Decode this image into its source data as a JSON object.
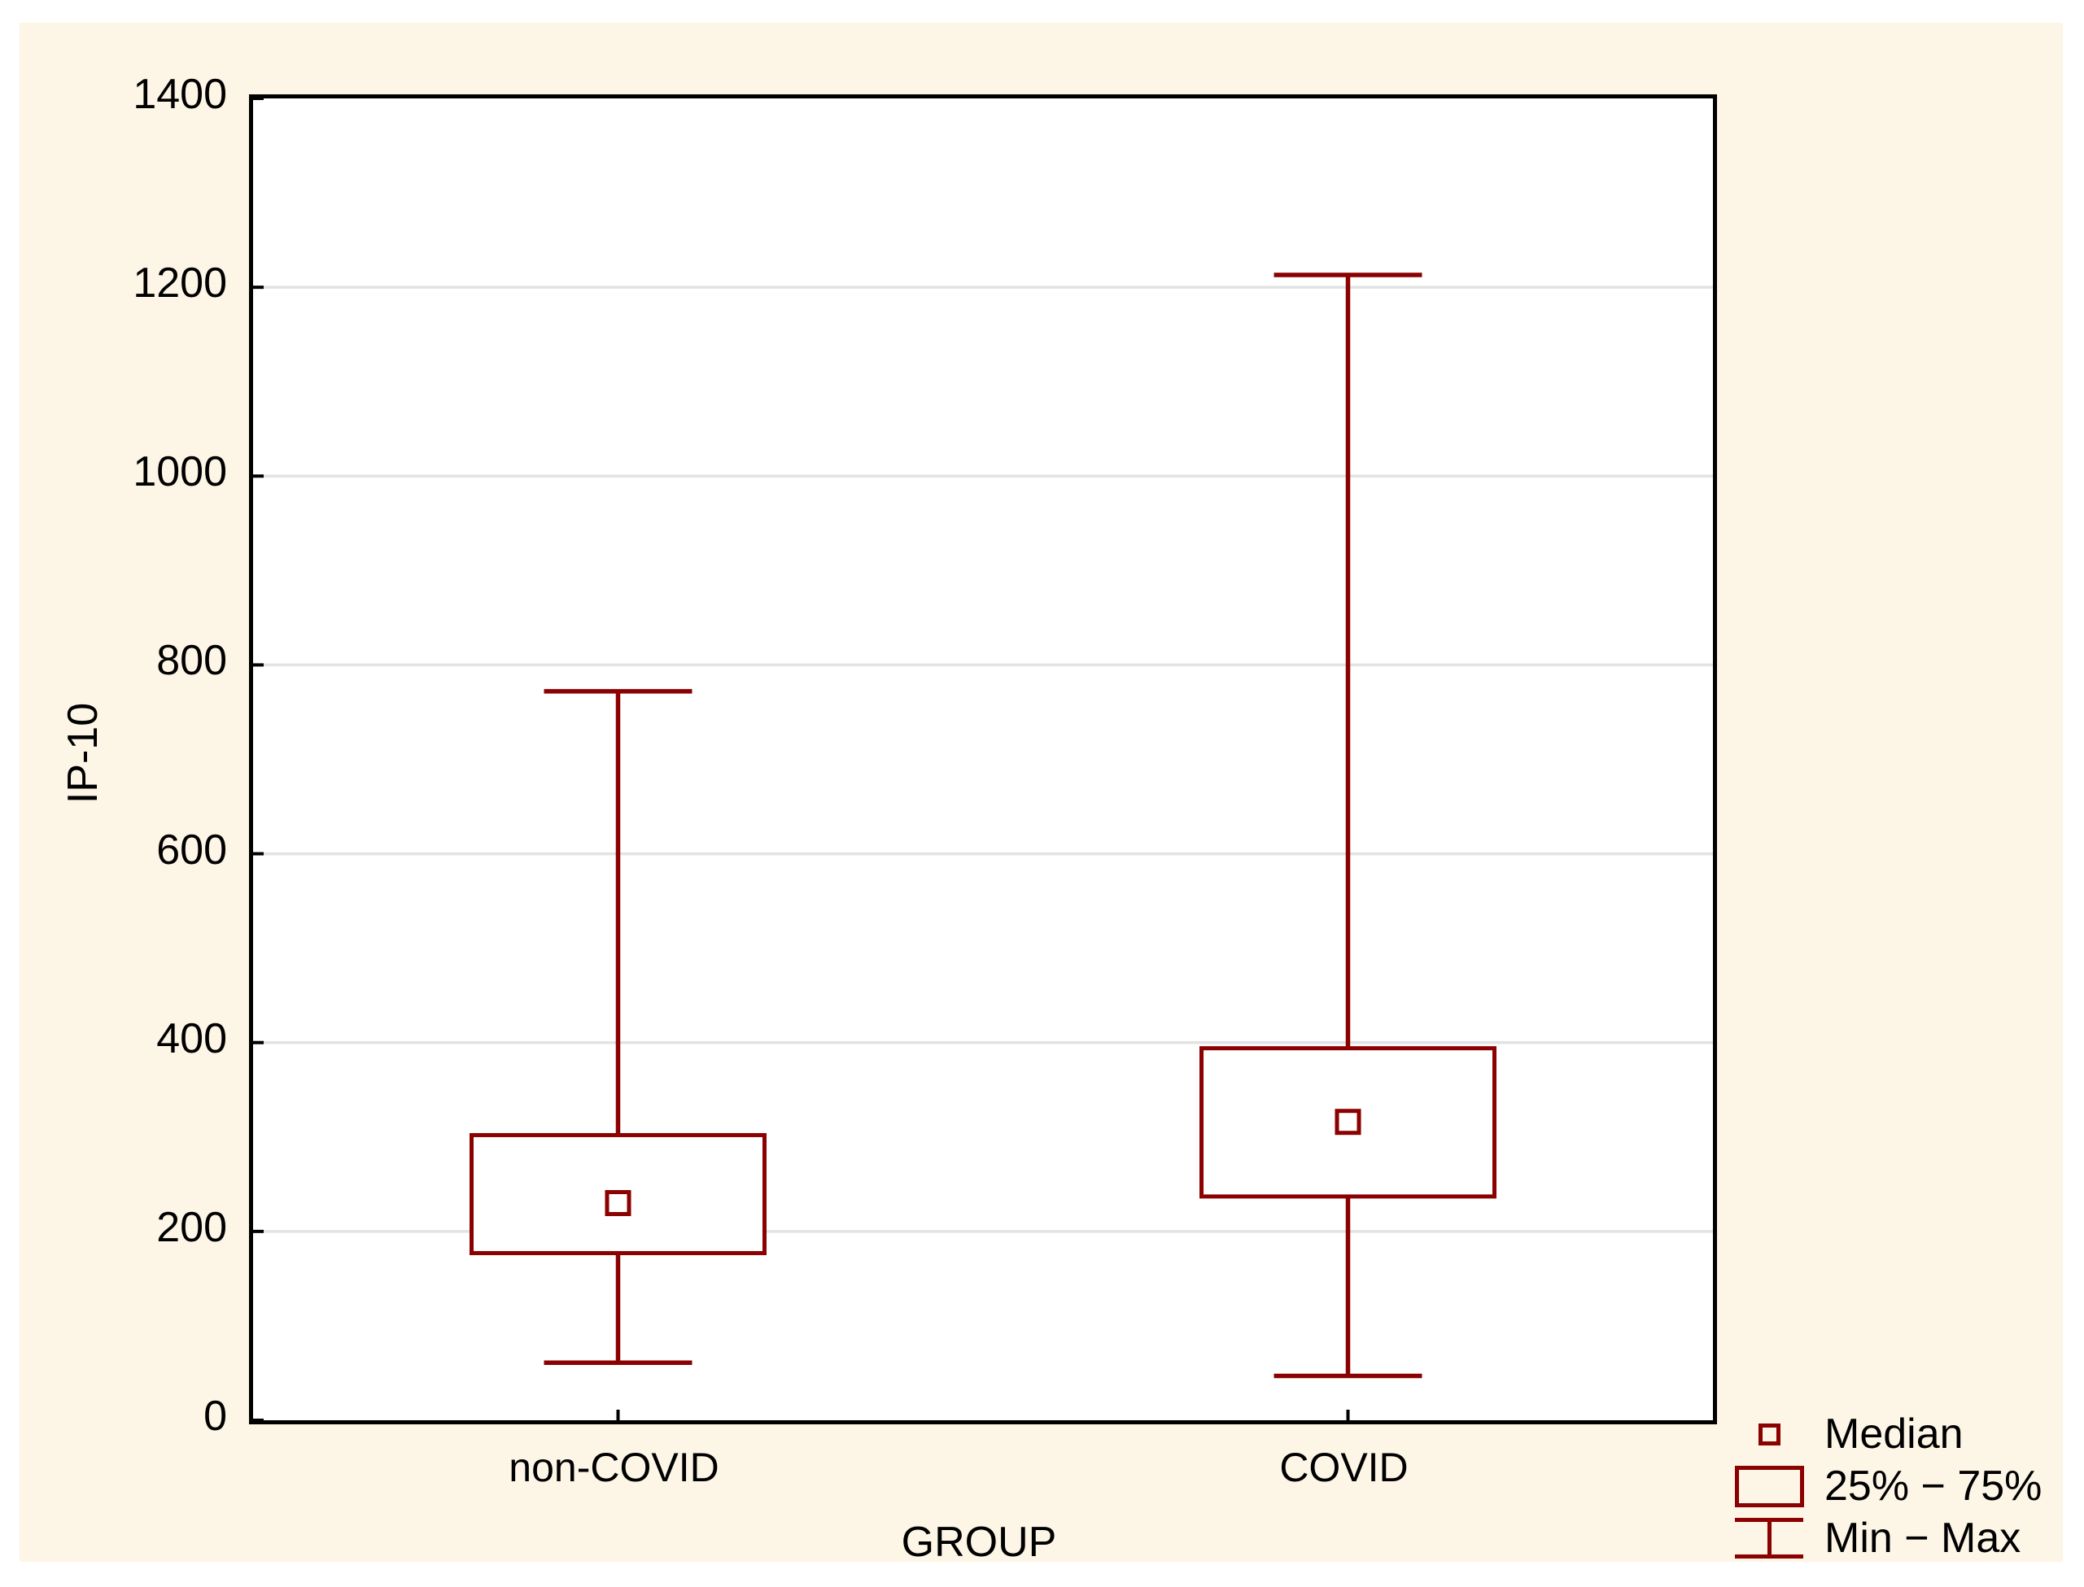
{
  "chart_data": {
    "type": "box",
    "title": "",
    "xlabel": "GROUP",
    "ylabel": "IP-10",
    "categories": [
      "non-COVID",
      "COVID"
    ],
    "series": [
      {
        "category": "non-COVID",
        "min": 61,
        "q1": 177,
        "median": 230,
        "q3": 302,
        "max": 772
      },
      {
        "category": "COVID",
        "min": 47,
        "q1": 237,
        "median": 316,
        "q3": 394,
        "max": 1213
      }
    ],
    "y_axis": {
      "min": 0,
      "max": 1400,
      "tick_step": 200,
      "ticks": [
        0,
        200,
        400,
        600,
        800,
        1000,
        1200,
        1400
      ]
    },
    "grid": "horizontal",
    "legend": {
      "position": "bottom-right",
      "items": [
        {
          "icon": "median-square-icon",
          "label": "Median"
        },
        {
          "icon": "quartile-box-icon",
          "label": "25% − 75%"
        },
        {
          "icon": "minmax-whisker-icon",
          "label": "Min − Max"
        }
      ]
    }
  },
  "colors": {
    "series_stroke": "#8B0000",
    "box_fill": "#FFFFFF",
    "grid_line": "#E3E3E3",
    "frame": "#000000",
    "canvas_bg": "#FDF5E6",
    "plot_bg": "#FFFFFF",
    "text": "#000000"
  }
}
